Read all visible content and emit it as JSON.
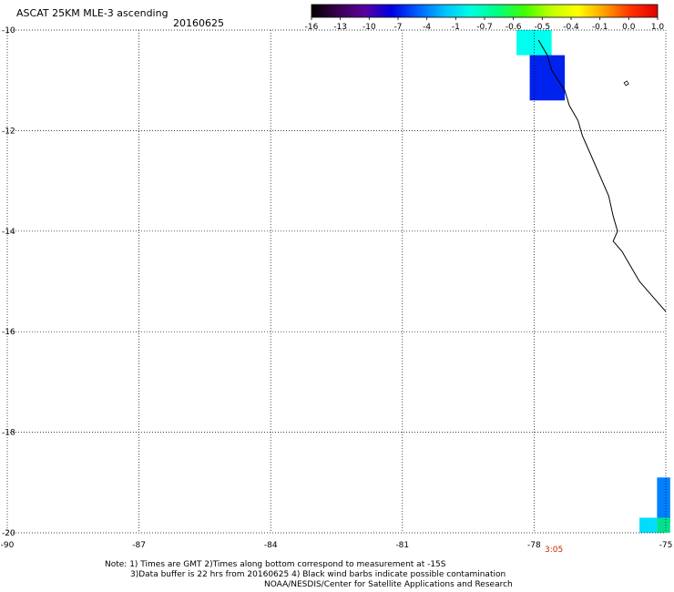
{
  "header": {
    "title": "ASCAT 25KM MLE-3 ascending",
    "date": "20160625"
  },
  "colorbar": {
    "labels": [
      "-16",
      "-13",
      "-10",
      "-7",
      "-4",
      "-1",
      "-0.7",
      "-0.6",
      "-0.5",
      "-0.4",
      "-0.1",
      "0.0",
      "1.0"
    ],
    "colors": [
      "#000000",
      "#3a0050",
      "#5a00a0",
      "#0000e0",
      "#0060ff",
      "#00c0ff",
      "#00ffe0",
      "#00ff80",
      "#40ff00",
      "#c0ff00",
      "#ffff00",
      "#ffa000",
      "#ff3000",
      "#e00000"
    ]
  },
  "map": {
    "lon_range": [
      -90,
      -75
    ],
    "lat_range": [
      -20,
      -10
    ],
    "x_ticks": [
      "-90",
      "-87",
      "-84",
      "-81",
      "-78",
      "-75"
    ],
    "y_ticks": [
      "-10",
      "-12",
      "-14",
      "-16",
      "-18",
      "-20"
    ],
    "time_label": "3:05",
    "grid": true
  },
  "cells": [
    {
      "lon0": -78.4,
      "lon1": -77.6,
      "lat0": -10.5,
      "lat1": -10.0,
      "color": "#00ffee"
    },
    {
      "lon0": -78.1,
      "lon1": -77.3,
      "lat0": -11.4,
      "lat1": -10.5,
      "color": "#0022ee"
    },
    {
      "lon0": -75.2,
      "lon1": -74.9,
      "lat0": -19.8,
      "lat1": -18.9,
      "color": "#0080ff"
    },
    {
      "lon0": -75.6,
      "lon1": -75.2,
      "lat0": -20.0,
      "lat1": -19.7,
      "color": "#00ddff"
    },
    {
      "lon0": -75.2,
      "lon1": -74.9,
      "lat0": -20.0,
      "lat1": -19.7,
      "color": "#00e090"
    }
  ],
  "coastline": [
    [
      -77.9,
      -10.2
    ],
    [
      -77.7,
      -10.5
    ],
    [
      -77.6,
      -10.8
    ],
    [
      -77.3,
      -11.2
    ],
    [
      -77.2,
      -11.5
    ],
    [
      -77.0,
      -11.8
    ],
    [
      -76.9,
      -12.1
    ],
    [
      -76.7,
      -12.5
    ],
    [
      -76.5,
      -12.9
    ],
    [
      -76.3,
      -13.3
    ],
    [
      -76.2,
      -13.7
    ],
    [
      -76.1,
      -14.0
    ],
    [
      -76.2,
      -14.2
    ],
    [
      -76.0,
      -14.4
    ],
    [
      -75.8,
      -14.7
    ],
    [
      -75.6,
      -15.0
    ],
    [
      -75.3,
      -15.3
    ],
    [
      -75.0,
      -15.6
    ]
  ],
  "notes": {
    "line1": "Note: 1) Times are GMT 2)Times along bottom correspond to measurement at -15S",
    "line2": "3)Data buffer is 22 hrs from 20160625 4) Black wind barbs indicate possible contamination",
    "line3": "NOAA/NESDIS/Center for Satellite Applications and Research"
  }
}
